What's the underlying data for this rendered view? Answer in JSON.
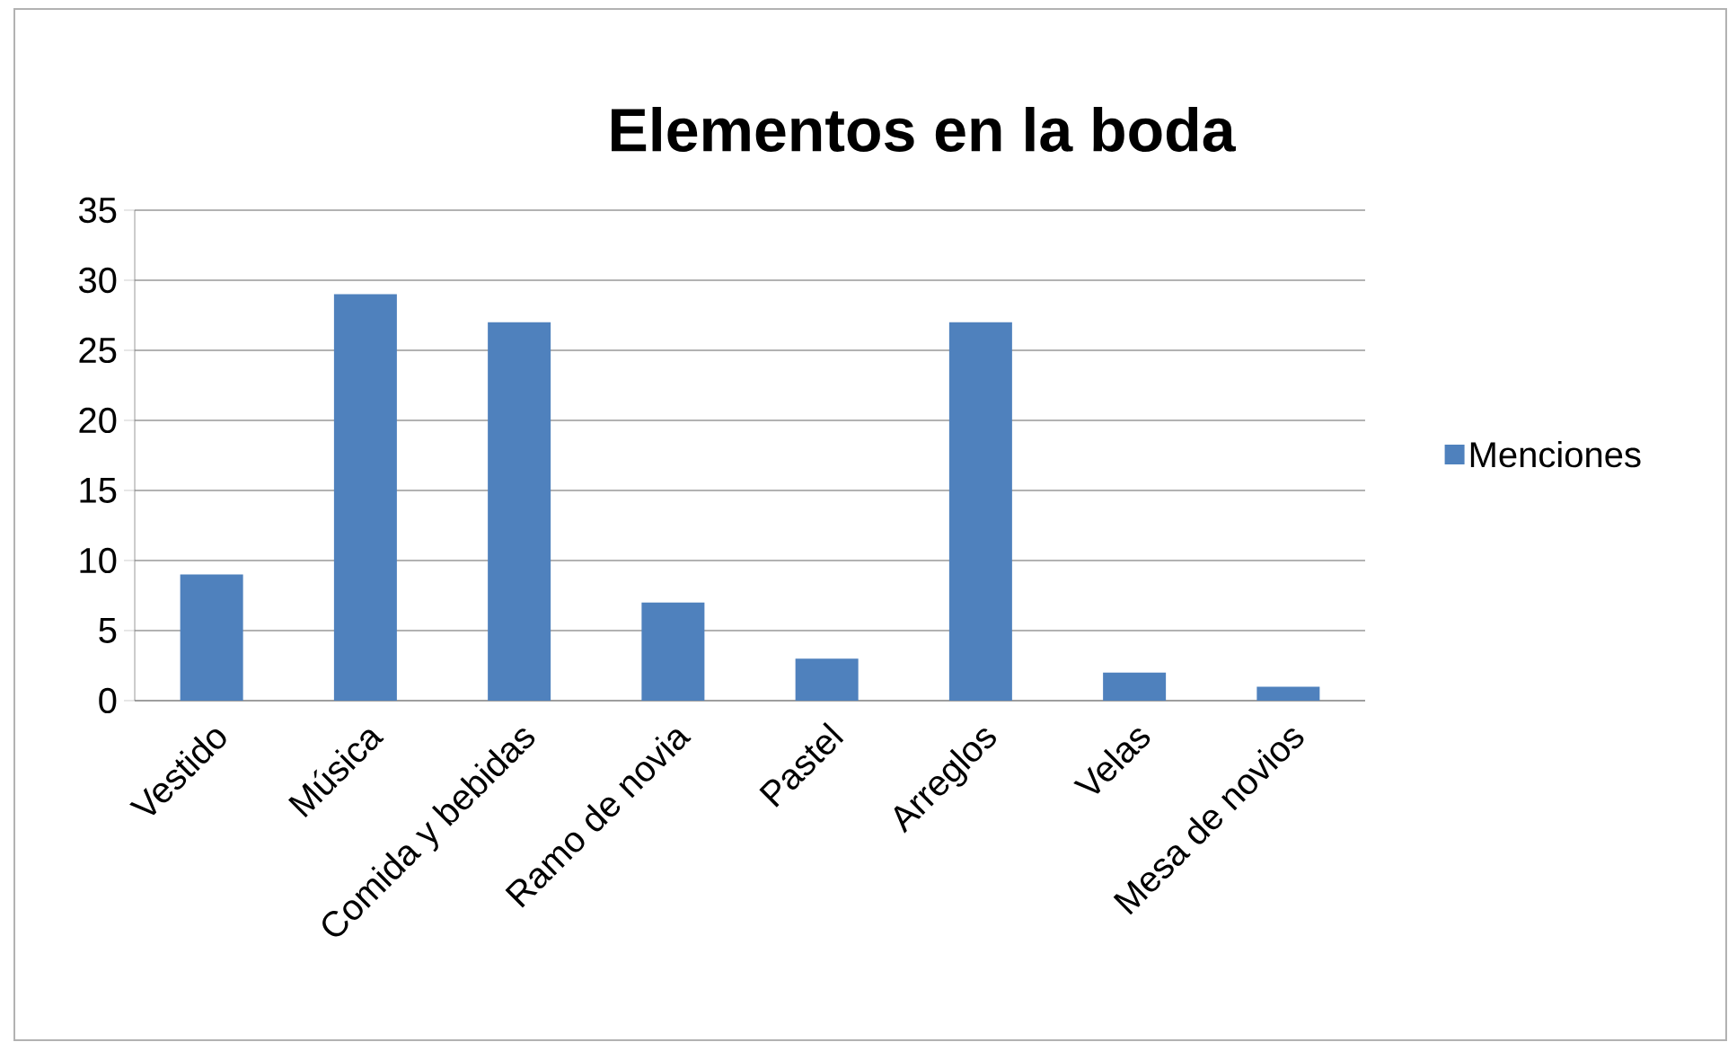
{
  "chart_data": {
    "type": "bar",
    "title": "Elementos en la boda",
    "categories": [
      "Vestido",
      "Música",
      "Comida y bebidas",
      "Ramo de novia",
      "Pastel",
      "Arreglos",
      "Velas",
      "Mesa de novios"
    ],
    "series": [
      {
        "name": "Menciones",
        "color": "#4f81bd",
        "values": [
          9,
          29,
          27,
          7,
          3,
          27,
          2,
          1
        ]
      }
    ],
    "ylim": [
      0,
      35
    ],
    "yticks": [
      0,
      5,
      10,
      15,
      20,
      25,
      30,
      35
    ],
    "grid": "y",
    "legend": "right"
  }
}
